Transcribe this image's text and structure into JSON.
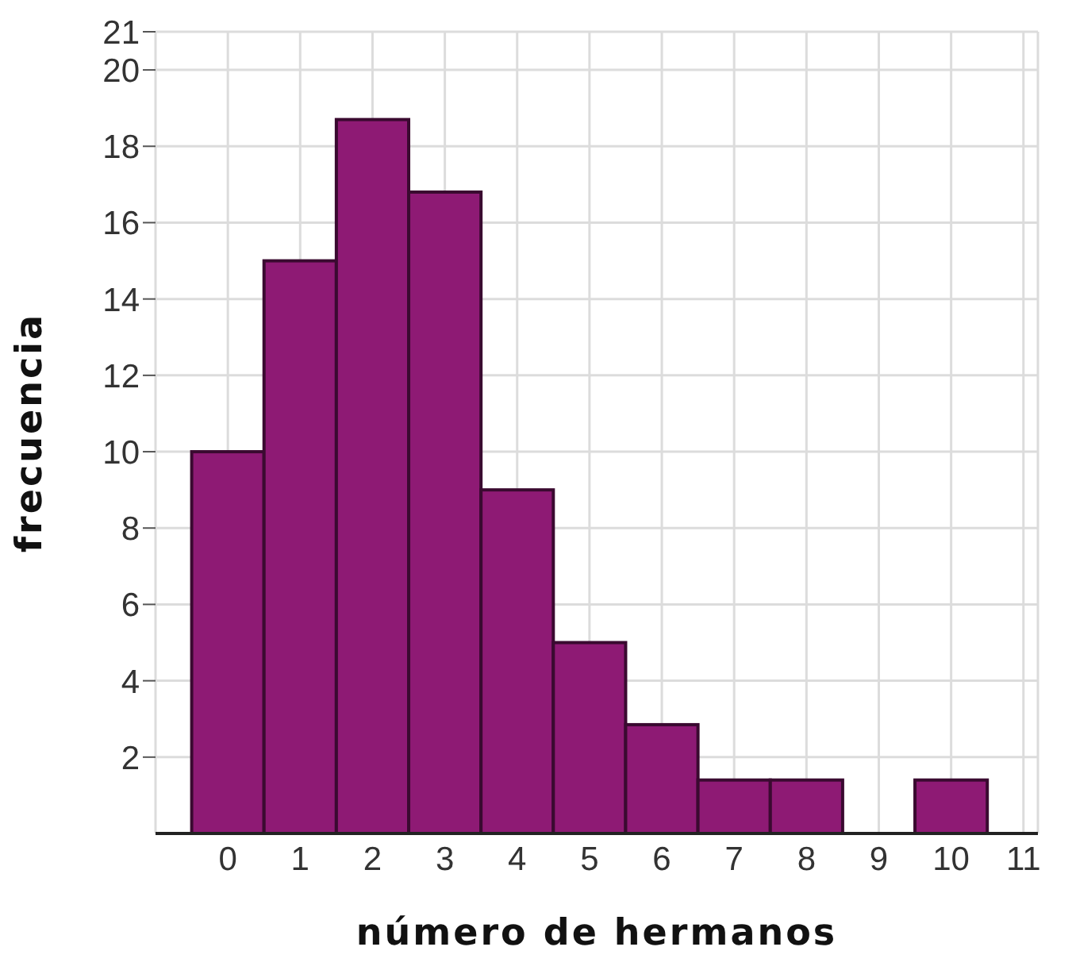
{
  "chart_data": {
    "type": "histogram",
    "xlabel": "número de hermanos",
    "ylabel": "frecuencia",
    "bins": [
      -0.5,
      0.5,
      1.5,
      2.5,
      3.5,
      4.5,
      5.5,
      6.5,
      7.5,
      8.5,
      9.5,
      10.5
    ],
    "values": [
      10,
      15,
      18.7,
      16.8,
      9,
      5,
      2.85,
      1.4,
      1.4,
      0,
      1.4
    ],
    "color": "#8e1a74",
    "xlim": [
      -1,
      11.2
    ],
    "xticks": [
      0,
      1,
      2,
      3,
      4,
      5,
      6,
      7,
      8,
      9,
      10,
      11
    ],
    "ylim": [
      0,
      21
    ],
    "yticks": [
      2,
      4,
      6,
      8,
      10,
      12,
      14,
      16,
      18,
      20,
      21
    ],
    "grid": true,
    "legend": false
  }
}
